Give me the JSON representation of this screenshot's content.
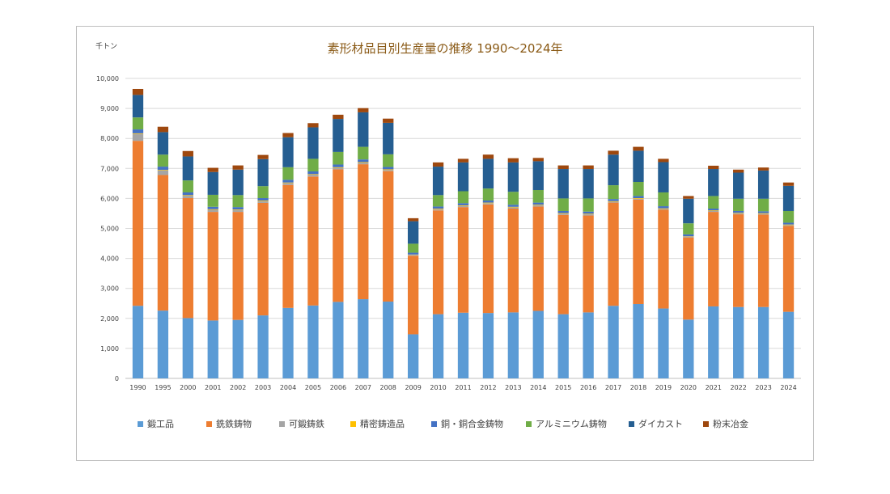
{
  "chart_data": {
    "type": "bar",
    "stacked": true,
    "title": "素形材品目別生産量の推移 1990～2024年",
    "unit": "千トン",
    "ylim": [
      0,
      10000
    ],
    "yticks": [
      "0",
      "1,000",
      "2,000",
      "3,000",
      "4,000",
      "5,000",
      "6,000",
      "7,000",
      "8,000",
      "9,000",
      "10,000"
    ],
    "grid": true,
    "legend_position": "bottom",
    "categories": [
      "1990",
      "1995",
      "2000",
      "2001",
      "2002",
      "2003",
      "2004",
      "2005",
      "2006",
      "2007",
      "2008",
      "2009",
      "2010",
      "2011",
      "2012",
      "2013",
      "2014",
      "2015",
      "2016",
      "2017",
      "2018",
      "2019",
      "2020",
      "2021",
      "2022",
      "2023",
      "2024"
    ],
    "series": [
      {
        "name": "鍛工品",
        "color": "#5b9bd5",
        "values": [
          2420,
          2260,
          2010,
          1930,
          1950,
          2100,
          2350,
          2430,
          2550,
          2640,
          2560,
          1470,
          2140,
          2190,
          2180,
          2200,
          2250,
          2140,
          2200,
          2420,
          2480,
          2330,
          1960,
          2400,
          2380,
          2380,
          2220
        ]
      },
      {
        "name": "銑鉄鋳物",
        "color": "#ed7d31",
        "values": [
          5500,
          4520,
          4000,
          3620,
          3600,
          3750,
          4100,
          4300,
          4420,
          4500,
          4350,
          2620,
          3460,
          3520,
          3620,
          3460,
          3480,
          3310,
          3230,
          3440,
          3480,
          3290,
          2740,
          3150,
          3090,
          3080,
          2860
        ]
      },
      {
        "name": "可鍛鋳鉄",
        "color": "#a5a5a5",
        "values": [
          230,
          150,
          80,
          70,
          60,
          60,
          60,
          60,
          50,
          50,
          40,
          30,
          40,
          40,
          40,
          40,
          40,
          40,
          40,
          30,
          30,
          30,
          30,
          30,
          30,
          30,
          30
        ]
      },
      {
        "name": "精密鋳造品",
        "color": "#ffc000",
        "values": [
          20,
          20,
          20,
          20,
          20,
          20,
          20,
          20,
          20,
          20,
          20,
          10,
          20,
          20,
          20,
          20,
          20,
          20,
          20,
          20,
          20,
          20,
          10,
          20,
          20,
          20,
          20
        ]
      },
      {
        "name": "銅・銅合金鋳物",
        "color": "#4472c4",
        "values": [
          130,
          110,
          90,
          80,
          80,
          80,
          90,
          90,
          90,
          90,
          80,
          60,
          70,
          70,
          70,
          70,
          70,
          70,
          70,
          70,
          70,
          70,
          60,
          60,
          60,
          60,
          60
        ]
      },
      {
        "name": "アルミニウム鋳物",
        "color": "#70ad47",
        "values": [
          400,
          400,
          400,
          400,
          400,
          400,
          420,
          420,
          420,
          420,
          420,
          300,
          380,
          400,
          400,
          430,
          420,
          420,
          440,
          460,
          470,
          460,
          370,
          420,
          410,
          420,
          390
        ]
      },
      {
        "name": "ダイカスト",
        "color": "#255e91",
        "values": [
          750,
          750,
          800,
          760,
          850,
          900,
          1000,
          1050,
          1100,
          1150,
          1050,
          750,
          950,
          960,
          990,
          980,
          960,
          980,
          980,
          1020,
          1040,
          1010,
          820,
          900,
          870,
          940,
          840
        ]
      },
      {
        "name": "粉末冶金",
        "color": "#9e480e",
        "values": [
          200,
          180,
          180,
          140,
          140,
          140,
          140,
          140,
          140,
          140,
          140,
          100,
          140,
          120,
          140,
          140,
          110,
          120,
          120,
          130,
          130,
          110,
          90,
          110,
          100,
          100,
          110
        ]
      }
    ]
  }
}
